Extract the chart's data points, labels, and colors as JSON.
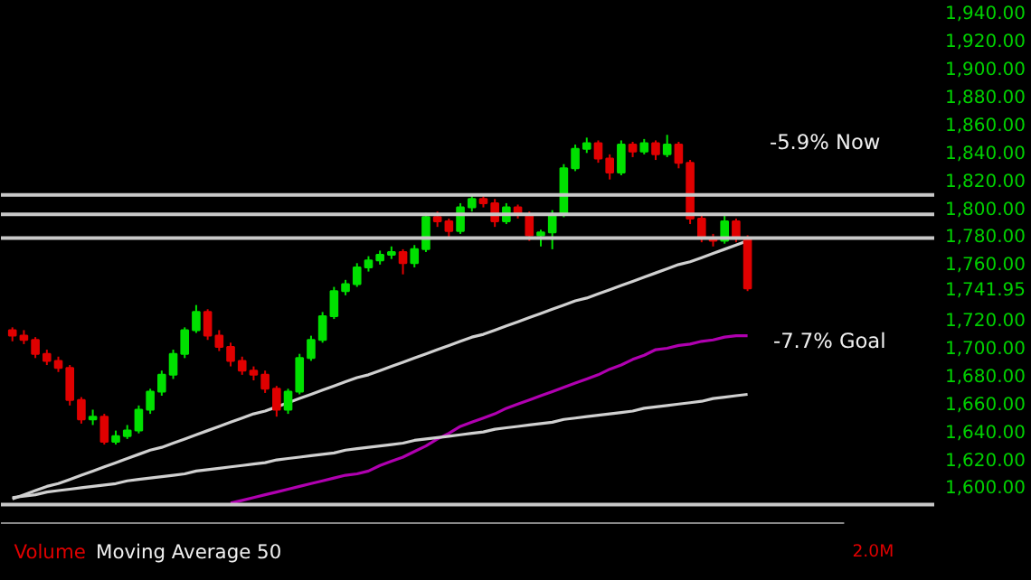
{
  "chart_data": {
    "type": "candlestick",
    "categories": [
      null,
      null,
      null,
      null,
      null,
      null,
      null,
      null,
      null,
      null,
      null,
      null,
      null,
      null,
      null,
      null,
      null,
      null,
      null,
      null,
      null,
      null,
      null,
      null,
      null,
      null,
      null,
      null,
      null,
      null,
      null,
      null,
      null,
      null,
      null,
      null,
      null,
      null,
      null,
      null,
      null,
      null,
      null,
      null,
      null,
      null,
      null,
      null,
      null,
      null,
      null,
      null,
      null,
      null,
      null,
      null,
      null,
      null,
      null,
      null,
      null,
      null,
      null,
      null,
      null
    ],
    "ohlc": [
      [
        1712,
        1714,
        1704,
        1708
      ],
      [
        1708,
        1712,
        1702,
        1705
      ],
      [
        1705,
        1707,
        1692,
        1695
      ],
      [
        1695,
        1698,
        1687,
        1690
      ],
      [
        1690,
        1693,
        1682,
        1685
      ],
      [
        1685,
        1687,
        1658,
        1662
      ],
      [
        1662,
        1664,
        1645,
        1648
      ],
      [
        1648,
        1655,
        1644,
        1650
      ],
      [
        1650,
        1652,
        1630,
        1632
      ],
      [
        1632,
        1640,
        1630,
        1636
      ],
      [
        1636,
        1644,
        1634,
        1640
      ],
      [
        1640,
        1658,
        1638,
        1655
      ],
      [
        1655,
        1670,
        1652,
        1668
      ],
      [
        1668,
        1683,
        1665,
        1680
      ],
      [
        1680,
        1698,
        1677,
        1695
      ],
      [
        1695,
        1714,
        1692,
        1712
      ],
      [
        1712,
        1730,
        1710,
        1725
      ],
      [
        1725,
        1727,
        1705,
        1708
      ],
      [
        1708,
        1712,
        1697,
        1700
      ],
      [
        1700,
        1703,
        1686,
        1690
      ],
      [
        1690,
        1693,
        1680,
        1683
      ],
      [
        1683,
        1686,
        1676,
        1680
      ],
      [
        1680,
        1683,
        1667,
        1670
      ],
      [
        1670,
        1672,
        1650,
        1655
      ],
      [
        1655,
        1670,
        1652,
        1668
      ],
      [
        1668,
        1695,
        1666,
        1692
      ],
      [
        1692,
        1708,
        1690,
        1705
      ],
      [
        1705,
        1725,
        1703,
        1722
      ],
      [
        1722,
        1743,
        1720,
        1740
      ],
      [
        1740,
        1748,
        1737,
        1745
      ],
      [
        1745,
        1760,
        1743,
        1757
      ],
      [
        1757,
        1765,
        1754,
        1762
      ],
      [
        1762,
        1769,
        1759,
        1766
      ],
      [
        1766,
        1772,
        1763,
        1768
      ],
      [
        1768,
        1770,
        1752,
        1760
      ],
      [
        1760,
        1773,
        1757,
        1770
      ],
      [
        1770,
        1796,
        1768,
        1793
      ],
      [
        1793,
        1797,
        1786,
        1790
      ],
      [
        1790,
        1792,
        1779,
        1783
      ],
      [
        1783,
        1803,
        1781,
        1800
      ],
      [
        1800,
        1809,
        1797,
        1806
      ],
      [
        1806,
        1808,
        1800,
        1803
      ],
      [
        1803,
        1806,
        1786,
        1790
      ],
      [
        1790,
        1803,
        1788,
        1800
      ],
      [
        1800,
        1802,
        1792,
        1795
      ],
      [
        1795,
        1797,
        1776,
        1780
      ],
      [
        1780,
        1784,
        1772,
        1782
      ],
      [
        1782,
        1798,
        1770,
        1795
      ],
      [
        1795,
        1831,
        1793,
        1828
      ],
      [
        1828,
        1845,
        1826,
        1842
      ],
      [
        1842,
        1850,
        1839,
        1846
      ],
      [
        1846,
        1848,
        1832,
        1835
      ],
      [
        1835,
        1838,
        1820,
        1825
      ],
      [
        1825,
        1848,
        1823,
        1845
      ],
      [
        1845,
        1847,
        1836,
        1840
      ],
      [
        1840,
        1849,
        1838,
        1846
      ],
      [
        1846,
        1848,
        1834,
        1838
      ],
      [
        1838,
        1852,
        1836,
        1845
      ],
      [
        1845,
        1847,
        1828,
        1832
      ],
      [
        1832,
        1834,
        1788,
        1792
      ],
      [
        1792,
        1795,
        1775,
        1778
      ],
      [
        1778,
        1781,
        1772,
        1776
      ],
      [
        1776,
        1794,
        1774,
        1790
      ],
      [
        1790,
        1792,
        1775,
        1778
      ],
      [
        1778,
        1780,
        1740,
        1741.95
      ]
    ],
    "series": [
      {
        "type": "line",
        "color": "#b000b0",
        "values": [
          null,
          null,
          null,
          null,
          null,
          null,
          null,
          null,
          null,
          null,
          null,
          null,
          null,
          null,
          null,
          null,
          null,
          null,
          null,
          1588,
          1590,
          1592,
          1594,
          1596,
          1598,
          1600,
          1602,
          1604,
          1606,
          1608,
          1609,
          1611,
          1615,
          1618,
          1621,
          1625,
          1629,
          1634,
          1638,
          1643,
          1646,
          1649,
          1652,
          1656,
          1659,
          1662,
          1665,
          1668,
          1671,
          1674,
          1677,
          1680,
          1684,
          1687,
          1691,
          1694,
          1698,
          1699,
          1701,
          1702,
          1704,
          1705,
          1707,
          1708,
          1708
        ]
      },
      {
        "type": "line",
        "color": "#d0d0d0",
        "values": [
          1591,
          1594,
          1597,
          1600,
          1602,
          1605,
          1608,
          1611,
          1614,
          1617,
          1620,
          1623,
          1626,
          1628,
          1631,
          1634,
          1637,
          1640,
          1643,
          1646,
          1649,
          1652,
          1654,
          1657,
          1660,
          1663,
          1666,
          1669,
          1672,
          1675,
          1678,
          1680,
          1683,
          1686,
          1689,
          1692,
          1695,
          1698,
          1701,
          1704,
          1707,
          1709,
          1712,
          1715,
          1718,
          1721,
          1724,
          1727,
          1730,
          1733,
          1735,
          1738,
          1741,
          1744,
          1747,
          1750,
          1753,
          1756,
          1759,
          1761,
          1764,
          1767,
          1770,
          1773,
          1776
        ]
      },
      {
        "type": "line",
        "color": "#d0d0d0",
        "values": [
          1592,
          1593,
          1594,
          1596,
          1597,
          1598,
          1599,
          1600,
          1601,
          1602,
          1604,
          1605,
          1606,
          1607,
          1608,
          1609,
          1611,
          1612,
          1613,
          1614,
          1615,
          1616,
          1617,
          1619,
          1620,
          1621,
          1622,
          1623,
          1624,
          1626,
          1627,
          1628,
          1629,
          1630,
          1631,
          1633,
          1634,
          1635,
          1636,
          1637,
          1638,
          1639,
          1641,
          1642,
          1643,
          1644,
          1645,
          1646,
          1648,
          1649,
          1650,
          1651,
          1652,
          1653,
          1654,
          1656,
          1657,
          1658,
          1659,
          1660,
          1661,
          1663,
          1664,
          1665,
          1666
        ]
      }
    ],
    "ref_lines": [
      {
        "axis": "y",
        "value": 1809,
        "color": "#c8c8c8"
      },
      {
        "axis": "y",
        "value": 1795,
        "color": "#c8c8c8"
      },
      {
        "axis": "y",
        "value": 1778,
        "color": "#c8c8c8"
      },
      {
        "axis": "y",
        "value": 1587,
        "color": "#c8c8c8"
      }
    ],
    "annotations": [
      "-5.9% Now",
      "-7.7% Goal",
      "Volume",
      "Moving Average 50",
      "2.0M"
    ],
    "ylim": [
      1575,
      1948
    ],
    "yticks": [
      {
        "value": 1600,
        "label": "1,600.00"
      },
      {
        "value": 1620,
        "label": "1,620.00"
      },
      {
        "value": 1640,
        "label": "1,640.00"
      },
      {
        "value": 1660,
        "label": "1,660.00"
      },
      {
        "value": 1680,
        "label": "1,680.00"
      },
      {
        "value": 1700,
        "label": "1,700.00"
      },
      {
        "value": 1720,
        "label": "1,720.00"
      },
      {
        "value": 1741.95,
        "label": "1,741.95"
      },
      {
        "value": 1760,
        "label": "1,760.00"
      },
      {
        "value": 1780,
        "label": "1,780.00"
      },
      {
        "value": 1800,
        "label": "1,800.00"
      },
      {
        "value": 1820,
        "label": "1,820.00"
      },
      {
        "value": 1840,
        "label": "1,840.00"
      },
      {
        "value": 1860,
        "label": "1,860.00"
      },
      {
        "value": 1880,
        "label": "1,880.00"
      },
      {
        "value": 1900,
        "label": "1,900.00"
      },
      {
        "value": 1920,
        "label": "1,920.00"
      },
      {
        "value": 1940,
        "label": "1,940.00"
      }
    ],
    "tick_labels": "y",
    "grid": false
  }
}
